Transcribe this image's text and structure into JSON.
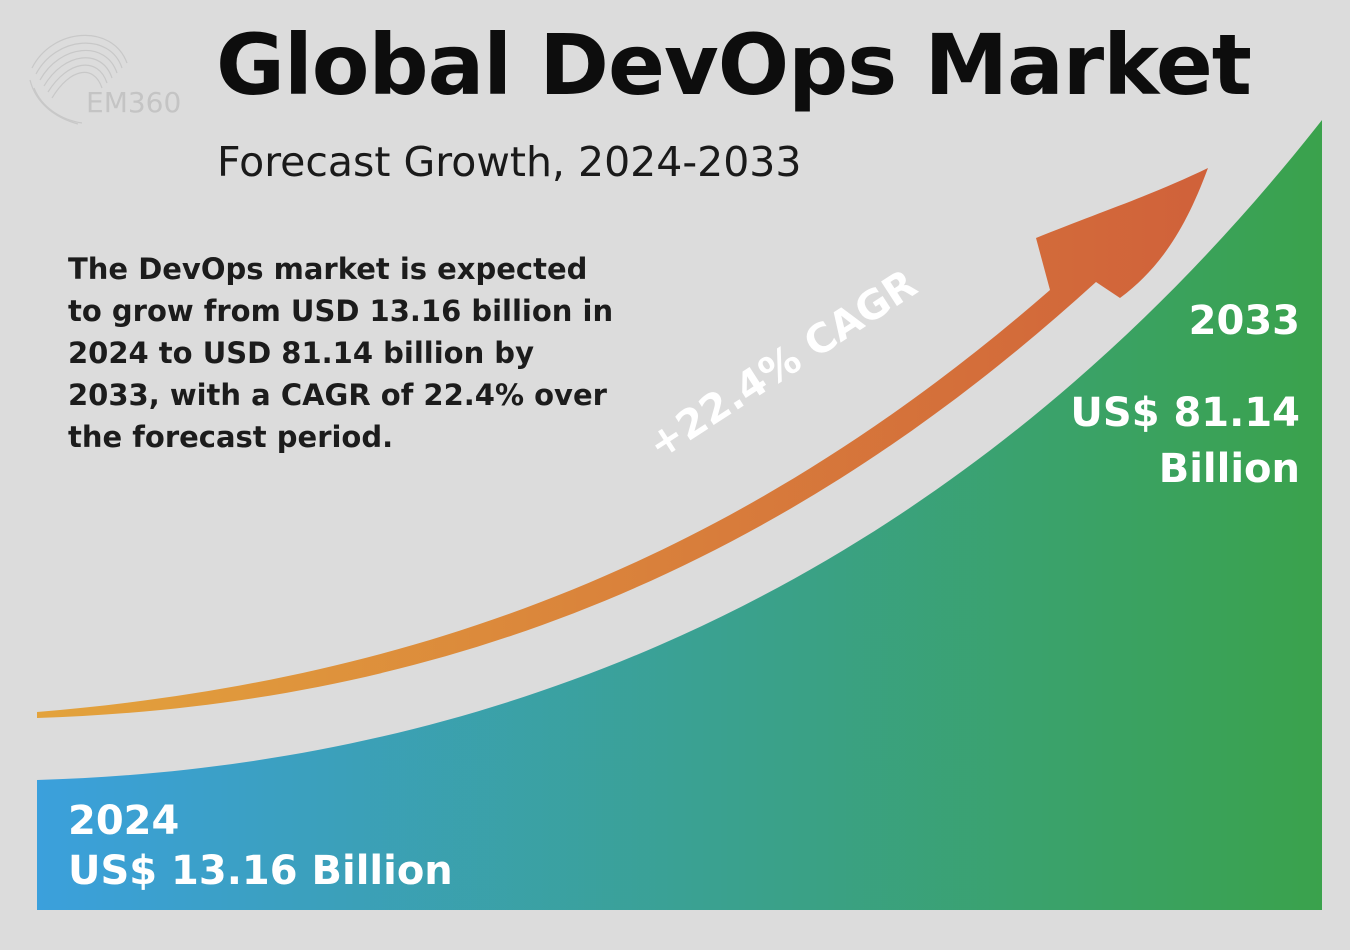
{
  "logo": {
    "text": "EM360"
  },
  "title": "Global DevOps Market",
  "subtitle": "Forecast Growth, 2024-2033",
  "description": "The DevOps market is expected to grow from USD 13.16 billion in 2024 to USD 81.14 billion by 2033, with a CAGR of 22.4% over the forecast period.",
  "colors": {
    "background": "#dcdcdc",
    "area_start": "#3ba0dc",
    "area_end": "#3aa24c",
    "arrow_start": "#e3a33c",
    "arrow_end": "#d0613a"
  },
  "chart_data": {
    "type": "area",
    "x": [
      2024,
      2033
    ],
    "values": [
      13.16,
      81.14
    ],
    "unit": "US$ Billion",
    "cagr_label": "+22.4% CAGR",
    "labels": {
      "start_year": "2024",
      "start_value": "US$ 13.16 Billion",
      "end_year": "2033",
      "end_value": "US$ 81.14 Billion"
    }
  }
}
